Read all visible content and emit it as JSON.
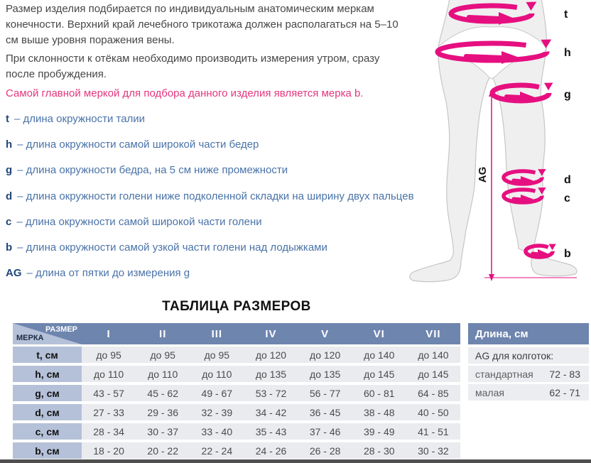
{
  "intro": {
    "p1": "Размер изделия подбирается по индивидуальным анатомическим меркам\nконечности. Верхний край лечебного трикотажа должен располагаться на 5–10\nсм выше уровня поражения вены.",
    "p2": "При склонности к отёкам необходимо производить измерения утром, сразу\nпосле пробуждения.",
    "highlight": "Самой главной меркой для подбора данного изделия является мерка b."
  },
  "measurements": [
    {
      "key": "t",
      "text": "– длина окружности талии"
    },
    {
      "key": "h",
      "text": "– длина окружности самой широкой части бедер"
    },
    {
      "key": "g",
      "text": "– длина окружности бедра, на 5 см ниже промежности"
    },
    {
      "key": "d",
      "text": "– длина окружности голени ниже подколенной складки на ширину двух пальцев"
    },
    {
      "key": "c",
      "text": "– длина окружности самой широкой части голени"
    },
    {
      "key": "b",
      "text": "– длина окружности самой узкой части голени над лодыжками"
    },
    {
      "key": "AG",
      "text": "– длина от пятки до измерения g"
    }
  ],
  "diagram": {
    "labels": {
      "t": "t",
      "h": "h",
      "g": "g",
      "d": "d",
      "c": "c",
      "b": "b",
      "ag": "AG"
    }
  },
  "size_table": {
    "title": "ТАБЛИЦА РАЗМЕРОВ",
    "corner": {
      "top": "РАЗМЕР",
      "bottom": "МЕРКА"
    },
    "columns": [
      "I",
      "II",
      "III",
      "IV",
      "V",
      "VI",
      "VII"
    ],
    "rows": [
      {
        "label": "t, см",
        "values": [
          "до 95",
          "до 95",
          "до 95",
          "до 120",
          "до 120",
          "до 140",
          "до 140"
        ]
      },
      {
        "label": "h, см",
        "values": [
          "до 110",
          "до 110",
          "до 110",
          "до 135",
          "до 135",
          "до 145",
          "до 145"
        ]
      },
      {
        "label": "g, см",
        "values": [
          "43 - 57",
          "45 - 62",
          "49 - 67",
          "53 - 72",
          "56 - 77",
          "60 - 81",
          "64 - 85"
        ]
      },
      {
        "label": "d, см",
        "values": [
          "27 - 33",
          "29 - 36",
          "32 - 39",
          "34 - 42",
          "36 - 45",
          "38 - 48",
          "40 - 50"
        ]
      },
      {
        "label": "c, см",
        "values": [
          "28 - 34",
          "30 - 37",
          "33 - 40",
          "35 - 43",
          "37 - 46",
          "39 - 49",
          "41 - 51"
        ]
      },
      {
        "label": "b, см",
        "values": [
          "18 - 20",
          "20 - 22",
          "22 - 24",
          "24 - 26",
          "26 - 28",
          "28 - 30",
          "30 - 32"
        ]
      }
    ]
  },
  "length_panel": {
    "header": "Длина, см",
    "subheader": "AG для колготок:",
    "rows": [
      {
        "label": "стандартная",
        "value": "72 - 83"
      },
      {
        "label": "малая",
        "value": "62 - 71"
      }
    ]
  },
  "colors": {
    "accent_pink": "#e60f80",
    "pink_text": "#e5367f",
    "list_blue": "#4a73a8",
    "list_blue_dark": "#1f4679",
    "table_header_blue": "#6e85ae",
    "row_header_blue": "#b5c1d8",
    "cell_gray": "#e9ebef",
    "body_text": "#474747",
    "bottom_bar": "#4f4f4f"
  }
}
